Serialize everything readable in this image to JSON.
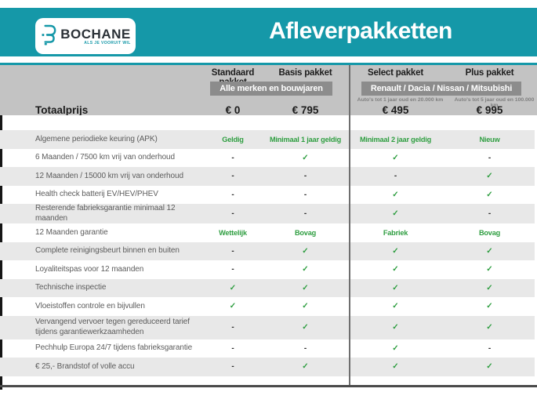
{
  "brand": {
    "name": "BOCHANE",
    "tagline": "ALS JE VOORUIT WIL"
  },
  "header": {
    "title": "Afleverpakketten"
  },
  "columns": [
    {
      "label": "Standaard pakket",
      "price": "€ 0",
      "note": ""
    },
    {
      "label": "Basis pakket",
      "price": "€ 795",
      "note": ""
    },
    {
      "label": "Select pakket",
      "price": "€ 495",
      "note": "Auto's tot 1 jaar oud en 20.000 km"
    },
    {
      "label": "Plus pakket",
      "price": "€ 995",
      "note": "Auto's tot 5 jaar oud en 100.000 km"
    }
  ],
  "group_badges": {
    "left": "Alle merken en bouwjaren",
    "right": "Renault / Dacia / Nissan / Mitsubishi"
  },
  "totals": {
    "label": "Totaalprijs"
  },
  "glyphs": {
    "check": "✓",
    "dash": "-"
  },
  "rows": [
    {
      "label": "Algemene periodieke keuring (APK)",
      "values": [
        "Geldig",
        "Minimaal 1 jaar geldig",
        "Minimaal 2 jaar geldig",
        "Nieuw"
      ]
    },
    {
      "label": "6 Maanden / 7500 km vrij van onderhoud",
      "values": [
        "-",
        "✓",
        "✓",
        "-"
      ]
    },
    {
      "label": "12 Maanden / 15000 km vrij van onderhoud",
      "values": [
        "-",
        "-",
        "-",
        "✓"
      ]
    },
    {
      "label": "Health check batterij EV/HEV/PHEV",
      "values": [
        "-",
        "-",
        "✓",
        "✓"
      ]
    },
    {
      "label": "Resterende fabrieksgarantie minimaal 12 maanden",
      "values": [
        "-",
        "-",
        "✓",
        "-"
      ]
    },
    {
      "label": "12 Maanden  garantie",
      "values": [
        "Wettelijk",
        "Bovag",
        "Fabriek",
        "Bovag"
      ]
    },
    {
      "label": "Complete reinigingsbeurt binnen en buiten",
      "values": [
        "-",
        "✓",
        "✓",
        "✓"
      ]
    },
    {
      "label": "Loyaliteitspas voor 12 maanden",
      "values": [
        "-",
        "✓",
        "✓",
        "✓"
      ]
    },
    {
      "label": "Technische inspectie",
      "values": [
        "✓",
        "✓",
        "✓",
        "✓"
      ]
    },
    {
      "label": "Vloeistoffen controle en bijvullen",
      "values": [
        "✓",
        "✓",
        "✓",
        "✓"
      ]
    },
    {
      "label": "Vervangend vervoer tegen gereduceerd tarief tijdens garantiewerkzaamheden",
      "values": [
        "-",
        "✓",
        "✓",
        "✓"
      ]
    },
    {
      "label": "Pechhulp Europa 24/7 tijdens fabrieksgarantie",
      "values": [
        "-",
        "-",
        "✓",
        "-"
      ]
    },
    {
      "label": "€ 25,- Brandstof of  volle accu",
      "values": [
        "-",
        "✓",
        "✓",
        "✓"
      ]
    }
  ],
  "colors": {
    "brand_teal": "#1598a8",
    "band_gray": "#c3c3c3",
    "badge_gray": "#8c8c8c",
    "stripe_gray": "#e8e8e8",
    "value_green": "#2f9e41",
    "divider_gray": "#6e6e6e"
  }
}
